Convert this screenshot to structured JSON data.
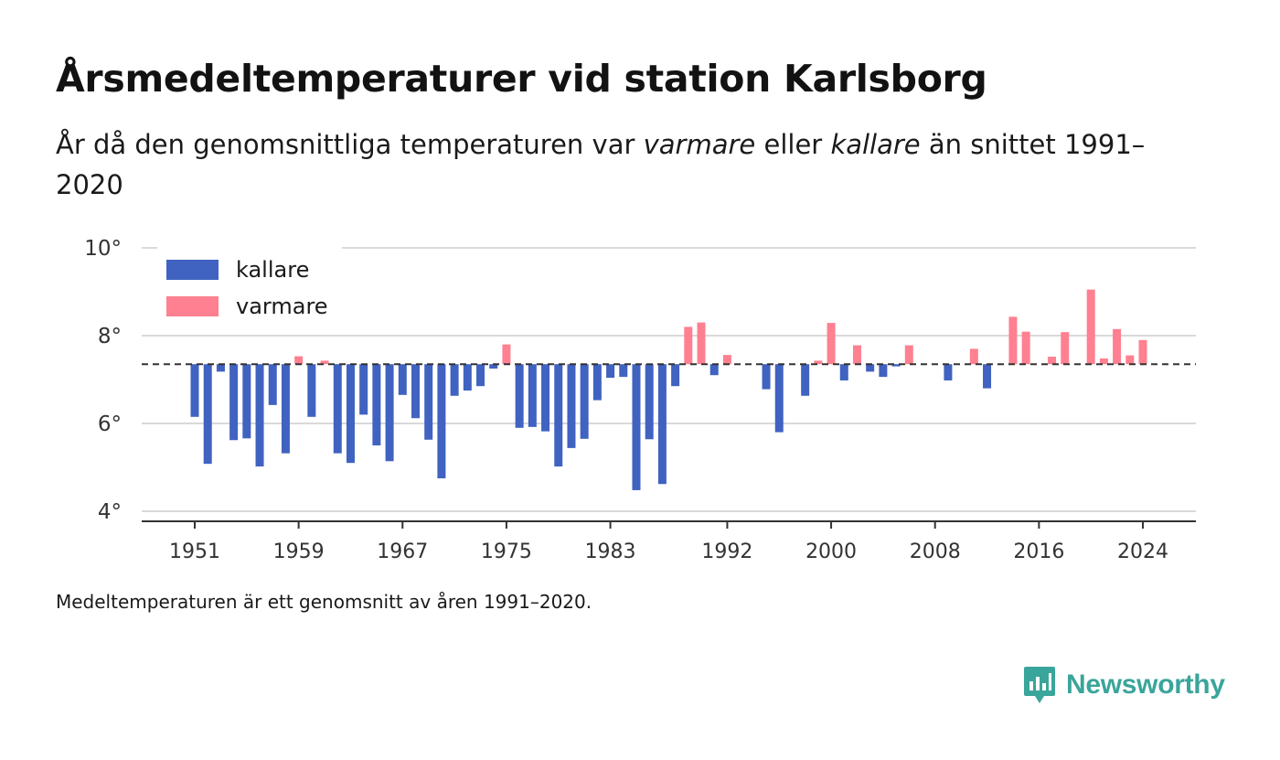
{
  "header": {
    "title": "Årsmedeltemperaturer vid station Karlsborg",
    "subtitle_pre": "År då den genomsnittliga temperaturen var ",
    "subtitle_warm": "varmare",
    "subtitle_mid": " eller ",
    "subtitle_cold": "kallare",
    "subtitle_post": " än snittet 1991–2020"
  },
  "footer": {
    "caption": "Medeltemperaturen är ett genomsnitt av åren 1991–2020.",
    "brand": "Newsworthy"
  },
  "icons": {
    "brand_logo": "newsworthy-logo-icon"
  },
  "colors": {
    "cold": "#4062c0",
    "warm": "#ff8090",
    "brand": "#3aa59b"
  },
  "chart_data": {
    "type": "bar",
    "baseline": 7.35,
    "ylim": [
      3.8,
      10
    ],
    "yticks": [
      4,
      6,
      8,
      10
    ],
    "ytick_labels": [
      "4°",
      "6°",
      "8°",
      "10°"
    ],
    "xlim": [
      1945,
      2028
    ],
    "xticks": [
      1951,
      1959,
      1967,
      1975,
      1983,
      1992,
      2000,
      2008,
      2016,
      2024
    ],
    "legend": {
      "position": "top-left",
      "entries": [
        {
          "label": "kallare",
          "color": "#4062c0"
        },
        {
          "label": "varmare",
          "color": "#ff8090"
        }
      ]
    },
    "grid": true,
    "x": [
      1951,
      1952,
      1953,
      1954,
      1955,
      1956,
      1957,
      1958,
      1959,
      1960,
      1961,
      1962,
      1963,
      1964,
      1965,
      1966,
      1967,
      1968,
      1969,
      1970,
      1971,
      1972,
      1973,
      1974,
      1975,
      1976,
      1977,
      1978,
      1979,
      1980,
      1981,
      1982,
      1983,
      1984,
      1985,
      1986,
      1987,
      1988,
      1989,
      1990,
      1991,
      1992,
      1993,
      1994,
      1995,
      1996,
      1997,
      1998,
      1999,
      2000,
      2001,
      2002,
      2003,
      2004,
      2005,
      2006,
      2007,
      2008,
      2009,
      2010,
      2011,
      2012,
      2013,
      2014,
      2015,
      2016,
      2017,
      2018,
      2019,
      2020,
      2021,
      2022,
      2023,
      2024
    ],
    "values": [
      6.15,
      5.08,
      7.18,
      5.62,
      5.66,
      5.02,
      6.42,
      5.32,
      7.53,
      6.15,
      7.43,
      5.32,
      5.1,
      6.2,
      5.5,
      5.14,
      6.65,
      6.12,
      5.63,
      4.75,
      6.63,
      6.75,
      6.85,
      7.25,
      7.8,
      5.9,
      5.92,
      5.82,
      5.02,
      5.44,
      5.65,
      6.53,
      7.04,
      7.06,
      4.48,
      5.64,
      4.62,
      6.85,
      8.2,
      8.3,
      7.1,
      7.56,
      7.35,
      7.35,
      6.78,
      5.8,
      7.35,
      6.63,
      7.43,
      8.29,
      6.98,
      7.78,
      7.18,
      7.06,
      7.3,
      7.78,
      7.35,
      7.35,
      6.98,
      7.35,
      7.7,
      6.8,
      7.35,
      8.43,
      8.09,
      7.35,
      7.52,
      8.08,
      7.35,
      9.05,
      7.48,
      8.15,
      7.55,
      7.9
    ]
  }
}
